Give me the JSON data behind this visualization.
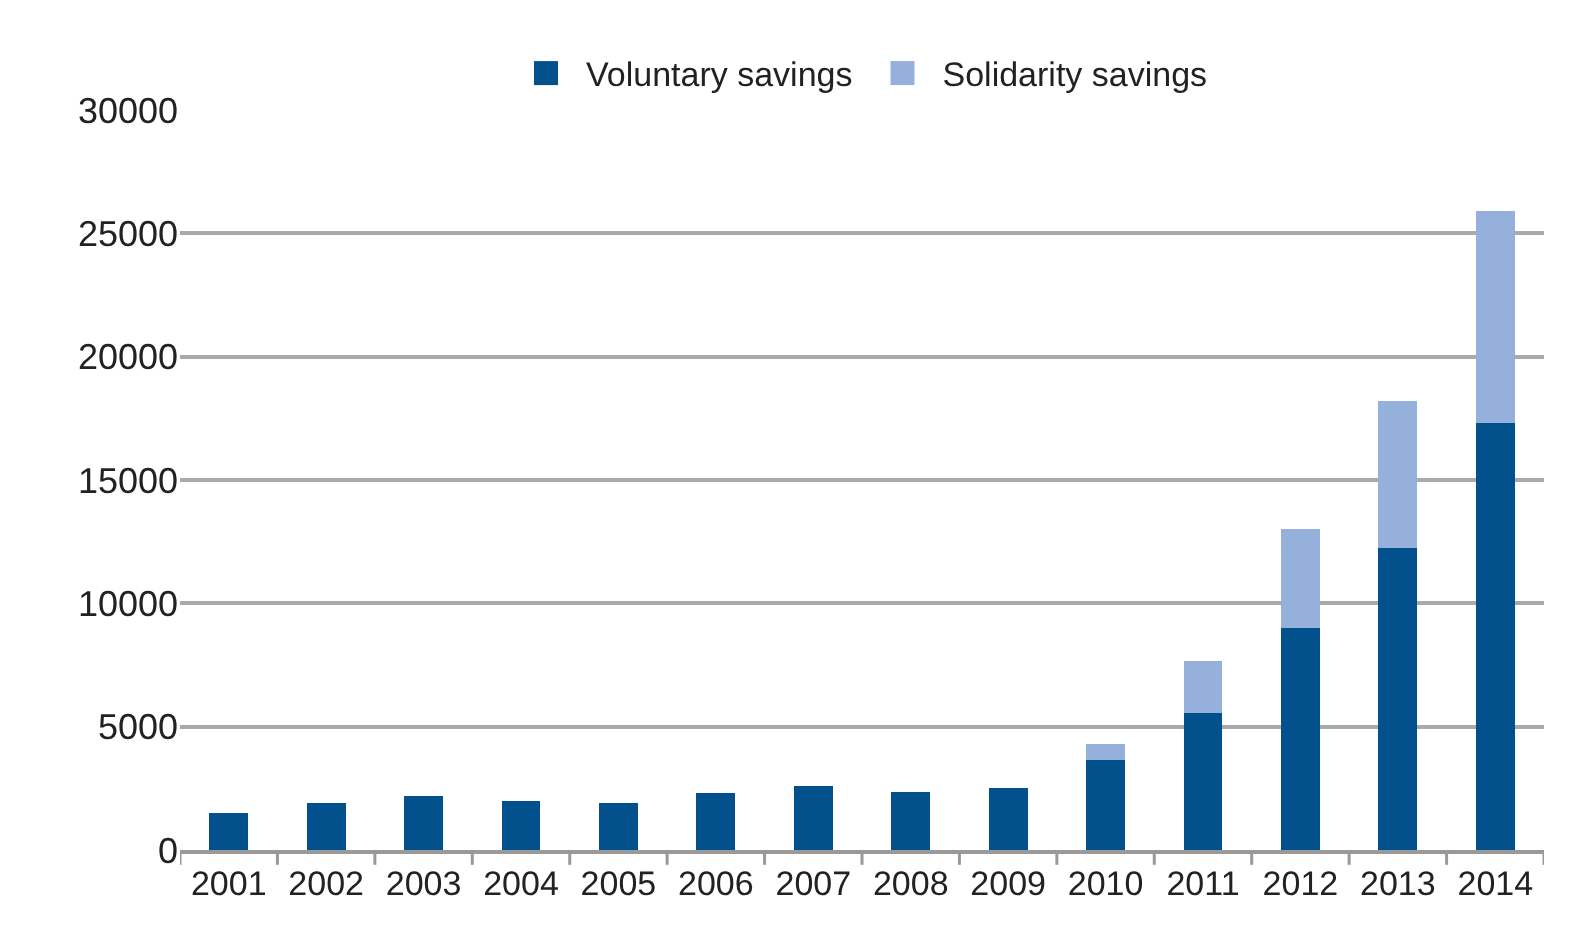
{
  "chart_data": {
    "type": "bar",
    "stacked": true,
    "categories": [
      "2001",
      "2002",
      "2003",
      "2004",
      "2005",
      "2006",
      "2007",
      "2008",
      "2009",
      "2010",
      "2011",
      "2012",
      "2013",
      "2014"
    ],
    "series": [
      {
        "name": "Voluntary savings",
        "color": "#02508c",
        "values": [
          1500,
          1900,
          2200,
          2000,
          1900,
          2300,
          2600,
          2350,
          2500,
          3650,
          5550,
          9000,
          12250,
          17300
        ]
      },
      {
        "name": "Solidarity savings",
        "color": "#95b1db",
        "values": [
          null,
          null,
          null,
          null,
          null,
          null,
          null,
          null,
          null,
          650,
          2100,
          4000,
          5950,
          8600
        ]
      }
    ],
    "ylim": [
      0,
      30000
    ],
    "yticks": [
      0,
      5000,
      10000,
      15000,
      20000,
      25000,
      30000
    ],
    "grid": "y",
    "legend": "top"
  }
}
